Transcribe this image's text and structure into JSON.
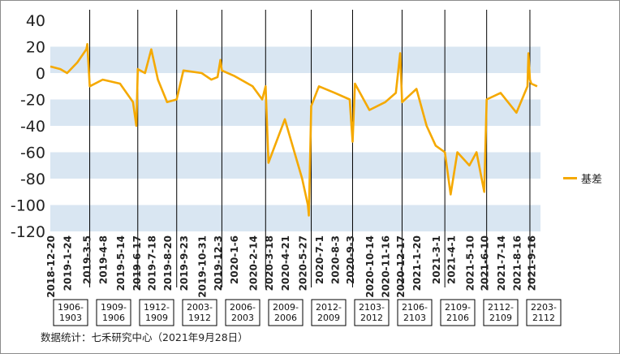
{
  "chart_data": {
    "type": "line",
    "title": "",
    "xlabel": "",
    "ylabel": "",
    "ylim": [
      -120,
      40
    ],
    "y_ticks": [
      40,
      20,
      0,
      -20,
      -40,
      -60,
      -80,
      -100,
      -120
    ],
    "grid": "alternating horizontal bands",
    "legend_position": "right",
    "series": [
      {
        "name": "基差",
        "color": "#f5a900",
        "x": [
          "2018-12-20",
          "2019-1-10",
          "2019-1-24",
          "2019-2-14",
          "2019-3-5",
          "2019-3-7",
          "2019-3-12",
          "2019-4-8",
          "2019-5-14",
          "2019-6-10",
          "2019-6-17",
          "2019-6-20",
          "2019-7-5",
          "2019-7-18",
          "2019-8-1",
          "2019-8-20",
          "2019-9-9",
          "2019-9-23",
          "2019-10-31",
          "2019-11-20",
          "2019-12-3",
          "2019-12-9",
          "2019-12-12",
          "2020-1-6",
          "2020-2-14",
          "2020-3-5",
          "2020-3-12",
          "2020-3-18",
          "2020-4-21",
          "2020-5-27",
          "2020-6-8",
          "2020-6-10",
          "2020-6-15",
          "2020-7-1",
          "2020-8-3",
          "2020-9-3",
          "2020-9-9",
          "2020-9-14",
          "2020-10-14",
          "2020-11-16",
          "2020-12-8",
          "2020-12-17",
          "2020-12-21",
          "2021-1-20",
          "2021-2-10",
          "2021-3-1",
          "2021-3-20",
          "2021-4-1",
          "2021-4-15",
          "2021-5-10",
          "2021-5-25",
          "2021-6-10",
          "2021-6-15",
          "2021-7-14",
          "2021-8-16",
          "2021-9-8",
          "2021-9-10",
          "2021-9-13",
          "2021-9-16",
          "2021-9-28"
        ],
        "y": [
          5,
          3,
          0,
          8,
          18,
          22,
          -10,
          -5,
          -8,
          -22,
          -40,
          3,
          0,
          18,
          -5,
          -22,
          -20,
          2,
          0,
          -5,
          -3,
          10,
          2,
          -2,
          -10,
          -20,
          -10,
          -68,
          -35,
          -80,
          -100,
          -108,
          -25,
          -10,
          -15,
          -20,
          -52,
          -8,
          -28,
          -22,
          -15,
          15,
          -22,
          -12,
          -40,
          -55,
          -60,
          -92,
          -60,
          -70,
          -60,
          -90,
          -20,
          -15,
          -30,
          -10,
          15,
          -5,
          -8,
          -10
        ]
      }
    ],
    "x_ticks": [
      "2018-12-20",
      "2019-1-24",
      "2019-3-5",
      "2019-4-8",
      "2019-5-14",
      "2019-6-17",
      "2019-7-18",
      "2019-8-20",
      "2019-9-23",
      "2019-10-31",
      "2019-12-3",
      "2020-1-6",
      "2020-2-14",
      "2020-3-18",
      "2020-4-21",
      "2020-5-27",
      "2020-7-1",
      "2020-8-3",
      "2020-9-3",
      "2020-10-14",
      "2020-11-16",
      "2020-12-17",
      "2021-1-20",
      "2021-3-1",
      "2021-4-1",
      "2021-5-10",
      "2021-6-10",
      "2021-7-14",
      "2021-8-16",
      "2021-9-16"
    ],
    "contract_switch_dates": [
      "2019-3-12",
      "2019-6-20",
      "2019-9-9",
      "2019-12-12",
      "2020-3-12",
      "2020-6-15",
      "2020-9-9",
      "2020-12-21",
      "2021-3-20",
      "2021-6-15",
      "2021-9-13"
    ],
    "contract_labels": [
      "1906-\n1903",
      "1909-\n1906",
      "1912-\n1909",
      "2003-\n1912",
      "2006-\n2003",
      "2009-\n2006",
      "2012-\n2009",
      "2103-\n2012",
      "2106-\n2103",
      "2109-\n2106",
      "2112-\n2109",
      "2203-\n2112"
    ],
    "x_range": [
      "2018-12-20",
      "2021-10-05"
    ]
  },
  "source_note": "数据统计：七禾研究中心（2021年9月28日）",
  "colors": {
    "line": "#f5a900",
    "band": "#d9e6f2",
    "divider": "#000000"
  }
}
